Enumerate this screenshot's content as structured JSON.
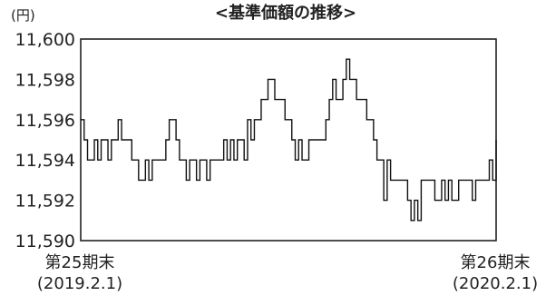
{
  "chart_data": {
    "type": "line",
    "title": "<基準価額の推移>",
    "unit_label": "(円)",
    "ylim": [
      11590,
      11600
    ],
    "yticks": [
      11590,
      11592,
      11594,
      11596,
      11598,
      11600
    ],
    "ytick_labels": [
      "11,590",
      "11,592",
      "11,594",
      "11,596",
      "11,598",
      "11,600"
    ],
    "x_start_label": [
      "第25期末",
      "(2019.2.1)"
    ],
    "x_end_label": [
      "第26期末",
      "(2020.2.1)"
    ],
    "grid": false,
    "series": [
      {
        "values": [
          11596,
          11595,
          11594,
          11594,
          11595,
          11594,
          11595,
          11595,
          11594,
          11595,
          11595,
          11596,
          11595,
          11595,
          11595,
          11594,
          11594,
          11593,
          11593,
          11594,
          11593,
          11594,
          11594,
          11594,
          11594,
          11595,
          11596,
          11596,
          11595,
          11594,
          11594,
          11593,
          11594,
          11594,
          11593,
          11594,
          11594,
          11593,
          11594,
          11594,
          11594,
          11594,
          11595,
          11594,
          11595,
          11594,
          11595,
          11595,
          11594,
          11596,
          11595,
          11596,
          11596,
          11597,
          11597,
          11598,
          11598,
          11597,
          11597,
          11597,
          11596,
          11596,
          11595,
          11594,
          11595,
          11594,
          11594,
          11595,
          11595,
          11595,
          11595,
          11595,
          11596,
          11597,
          11598,
          11597,
          11597,
          11598,
          11599,
          11598,
          11598,
          11597,
          11597,
          11597,
          11596,
          11596,
          11595,
          11594,
          11594,
          11592,
          11594,
          11593,
          11593,
          11593,
          11593,
          11593,
          11592,
          11591,
          11592,
          11591,
          11593,
          11593,
          11593,
          11593,
          11592,
          11592,
          11593,
          11592,
          11593,
          11592,
          11592,
          11593,
          11593,
          11593,
          11593,
          11592,
          11593,
          11593,
          11593,
          11593,
          11594,
          11593,
          11595
        ]
      }
    ]
  }
}
